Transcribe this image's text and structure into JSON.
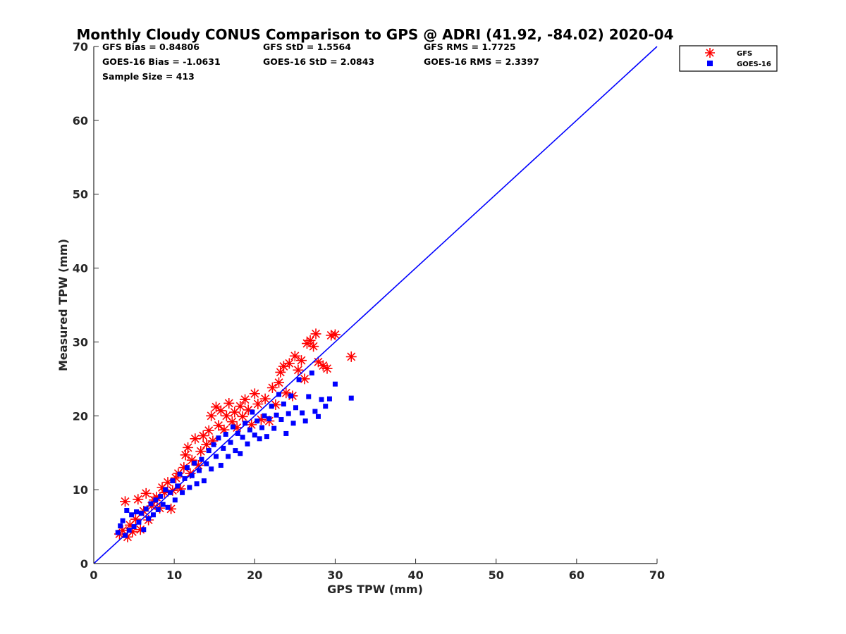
{
  "chart_data": {
    "type": "scatter",
    "title": "Monthly Cloudy CONUS Comparison to GPS @ ADRI (41.92, -84.02) 2020-04",
    "xlabel": "GPS TPW (mm)",
    "ylabel": "Measured TPW (mm)",
    "xlim": [
      0,
      70
    ],
    "ylim": [
      0,
      70
    ],
    "xticks": [
      "0",
      "10",
      "20",
      "30",
      "40",
      "50",
      "60",
      "70"
    ],
    "yticks": [
      "0",
      "10",
      "20",
      "30",
      "40",
      "50",
      "60",
      "70"
    ],
    "grid": false,
    "legend_position": "top-right",
    "stats": [
      "GFS Bias = 0.84806",
      "GFS StD = 1.5564",
      "GFS RMS = 1.7725",
      "GOES-16 Bias = -1.0631",
      "GOES-16 StD = 2.0843",
      "GOES-16 RMS = 2.3397",
      "Sample Size = 413"
    ],
    "reference_line": {
      "x": [
        0,
        70
      ],
      "y": [
        0,
        70
      ],
      "color": "#0000ff"
    },
    "series": [
      {
        "name": "GFS",
        "marker": "asterisk",
        "color": "#ff0000",
        "points": [
          [
            3.2,
            4.0
          ],
          [
            3.6,
            4.5
          ],
          [
            3.9,
            8.4
          ],
          [
            4.2,
            3.6
          ],
          [
            4.5,
            5.2
          ],
          [
            4.8,
            4.3
          ],
          [
            5.2,
            6.0
          ],
          [
            5.5,
            8.7
          ],
          [
            5.8,
            4.6
          ],
          [
            6.2,
            7.1
          ],
          [
            6.5,
            9.5
          ],
          [
            6.8,
            5.9
          ],
          [
            7.2,
            7.8
          ],
          [
            7.5,
            8.6
          ],
          [
            7.8,
            9.0
          ],
          [
            8.2,
            7.5
          ],
          [
            8.5,
            10.3
          ],
          [
            8.8,
            9.6
          ],
          [
            9.2,
            11.0
          ],
          [
            9.6,
            7.4
          ],
          [
            9.8,
            9.9
          ],
          [
            10.2,
            11.6
          ],
          [
            10.5,
            12.2
          ],
          [
            10.8,
            10.1
          ],
          [
            11.2,
            13.0
          ],
          [
            11.4,
            14.7
          ],
          [
            11.7,
            15.7
          ],
          [
            12.0,
            12.2
          ],
          [
            12.2,
            14.0
          ],
          [
            12.6,
            16.9
          ],
          [
            13.0,
            13.3
          ],
          [
            13.3,
            15.2
          ],
          [
            13.6,
            17.3
          ],
          [
            14.0,
            16.1
          ],
          [
            14.3,
            18.0
          ],
          [
            14.6,
            20.0
          ],
          [
            14.8,
            16.6
          ],
          [
            15.2,
            21.2
          ],
          [
            15.5,
            18.7
          ],
          [
            15.8,
            20.7
          ],
          [
            16.2,
            18.1
          ],
          [
            16.5,
            20.0
          ],
          [
            16.8,
            21.7
          ],
          [
            17.2,
            19.2
          ],
          [
            17.5,
            20.5
          ],
          [
            17.8,
            18.4
          ],
          [
            18.2,
            21.3
          ],
          [
            18.5,
            19.9
          ],
          [
            18.8,
            22.2
          ],
          [
            19.2,
            20.8
          ],
          [
            19.6,
            18.8
          ],
          [
            20.0,
            23.0
          ],
          [
            20.4,
            21.6
          ],
          [
            20.8,
            19.5
          ],
          [
            21.3,
            22.3
          ],
          [
            21.8,
            19.3
          ],
          [
            22.2,
            23.8
          ],
          [
            22.6,
            21.5
          ],
          [
            23.0,
            24.5
          ],
          [
            23.2,
            25.9
          ],
          [
            23.6,
            26.7
          ],
          [
            23.9,
            23.1
          ],
          [
            24.3,
            27.1
          ],
          [
            24.7,
            22.7
          ],
          [
            25.0,
            28.1
          ],
          [
            25.4,
            26.2
          ],
          [
            25.8,
            27.5
          ],
          [
            26.2,
            25.0
          ],
          [
            26.5,
            29.8
          ],
          [
            26.9,
            30.2
          ],
          [
            27.3,
            29.4
          ],
          [
            27.6,
            31.1
          ],
          [
            27.9,
            27.3
          ],
          [
            28.5,
            26.8
          ],
          [
            29.0,
            26.4
          ],
          [
            29.5,
            30.9
          ],
          [
            30.0,
            31.0
          ],
          [
            32.0,
            28.0
          ]
        ]
      },
      {
        "name": "GOES-16",
        "marker": "square",
        "color": "#0000ff",
        "points": [
          [
            3.0,
            4.2
          ],
          [
            3.3,
            5.1
          ],
          [
            3.6,
            5.8
          ],
          [
            3.9,
            3.8
          ],
          [
            4.1,
            7.2
          ],
          [
            4.4,
            4.5
          ],
          [
            4.7,
            6.6
          ],
          [
            5.0,
            5.0
          ],
          [
            5.3,
            7.0
          ],
          [
            5.6,
            5.6
          ],
          [
            5.9,
            6.8
          ],
          [
            6.2,
            4.6
          ],
          [
            6.5,
            7.4
          ],
          [
            6.8,
            6.1
          ],
          [
            7.1,
            8.1
          ],
          [
            7.4,
            6.6
          ],
          [
            7.7,
            8.6
          ],
          [
            8.0,
            7.3
          ],
          [
            8.3,
            9.1
          ],
          [
            8.6,
            8.0
          ],
          [
            8.9,
            10.0
          ],
          [
            9.2,
            7.6
          ],
          [
            9.5,
            9.6
          ],
          [
            9.8,
            11.2
          ],
          [
            10.1,
            8.6
          ],
          [
            10.4,
            10.5
          ],
          [
            10.7,
            12.1
          ],
          [
            11.0,
            9.6
          ],
          [
            11.3,
            11.5
          ],
          [
            11.6,
            13.0
          ],
          [
            11.9,
            10.3
          ],
          [
            12.2,
            11.9
          ],
          [
            12.5,
            13.6
          ],
          [
            12.8,
            10.8
          ],
          [
            13.1,
            12.6
          ],
          [
            13.4,
            14.1
          ],
          [
            13.7,
            11.2
          ],
          [
            14.0,
            13.5
          ],
          [
            14.3,
            15.3
          ],
          [
            14.6,
            12.8
          ],
          [
            14.9,
            16.1
          ],
          [
            15.2,
            14.5
          ],
          [
            15.5,
            17.0
          ],
          [
            15.8,
            13.3
          ],
          [
            16.1,
            15.6
          ],
          [
            16.4,
            17.5
          ],
          [
            16.7,
            14.5
          ],
          [
            17.0,
            16.4
          ],
          [
            17.3,
            18.5
          ],
          [
            17.6,
            15.3
          ],
          [
            17.9,
            17.6
          ],
          [
            18.2,
            14.9
          ],
          [
            18.5,
            17.1
          ],
          [
            18.8,
            19.0
          ],
          [
            19.1,
            16.2
          ],
          [
            19.4,
            18.1
          ],
          [
            19.7,
            20.5
          ],
          [
            20.0,
            17.4
          ],
          [
            20.3,
            19.3
          ],
          [
            20.6,
            16.9
          ],
          [
            20.9,
            18.4
          ],
          [
            21.2,
            20.0
          ],
          [
            21.5,
            17.2
          ],
          [
            21.8,
            19.6
          ],
          [
            22.1,
            21.3
          ],
          [
            22.4,
            18.3
          ],
          [
            22.7,
            20.1
          ],
          [
            23.0,
            22.9
          ],
          [
            23.3,
            19.5
          ],
          [
            23.6,
            21.6
          ],
          [
            23.9,
            17.6
          ],
          [
            24.2,
            20.3
          ],
          [
            24.5,
            22.7
          ],
          [
            24.8,
            19.0
          ],
          [
            25.1,
            21.1
          ],
          [
            25.5,
            24.9
          ],
          [
            25.9,
            20.4
          ],
          [
            26.3,
            19.3
          ],
          [
            26.7,
            22.6
          ],
          [
            27.1,
            25.8
          ],
          [
            27.5,
            20.6
          ],
          [
            27.9,
            19.9
          ],
          [
            28.3,
            22.2
          ],
          [
            28.8,
            21.3
          ],
          [
            29.3,
            22.3
          ],
          [
            30.0,
            24.3
          ],
          [
            32.0,
            22.4
          ]
        ]
      }
    ]
  }
}
